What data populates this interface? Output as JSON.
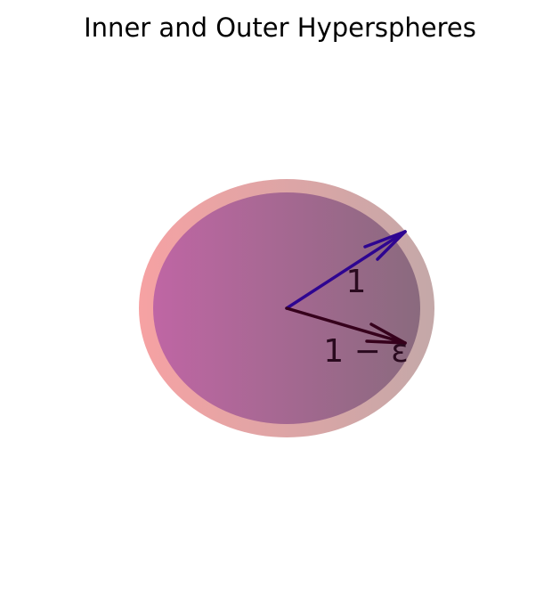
{
  "title": "Inner and Outer Hyperspheres",
  "labels": {
    "outer_radius": "1",
    "inner_radius": "1 − ε"
  },
  "colors": {
    "outer_left": "#f6a2a3",
    "outer_right": "#c4a8a8",
    "inner_left": "#bf66a4",
    "inner_right": "#8a6a7e",
    "outer_arrow": "#2e0591",
    "inner_arrow": "#36001c",
    "inner_label": "#2a0a1f",
    "outer_label": "#2a0a1f"
  }
}
